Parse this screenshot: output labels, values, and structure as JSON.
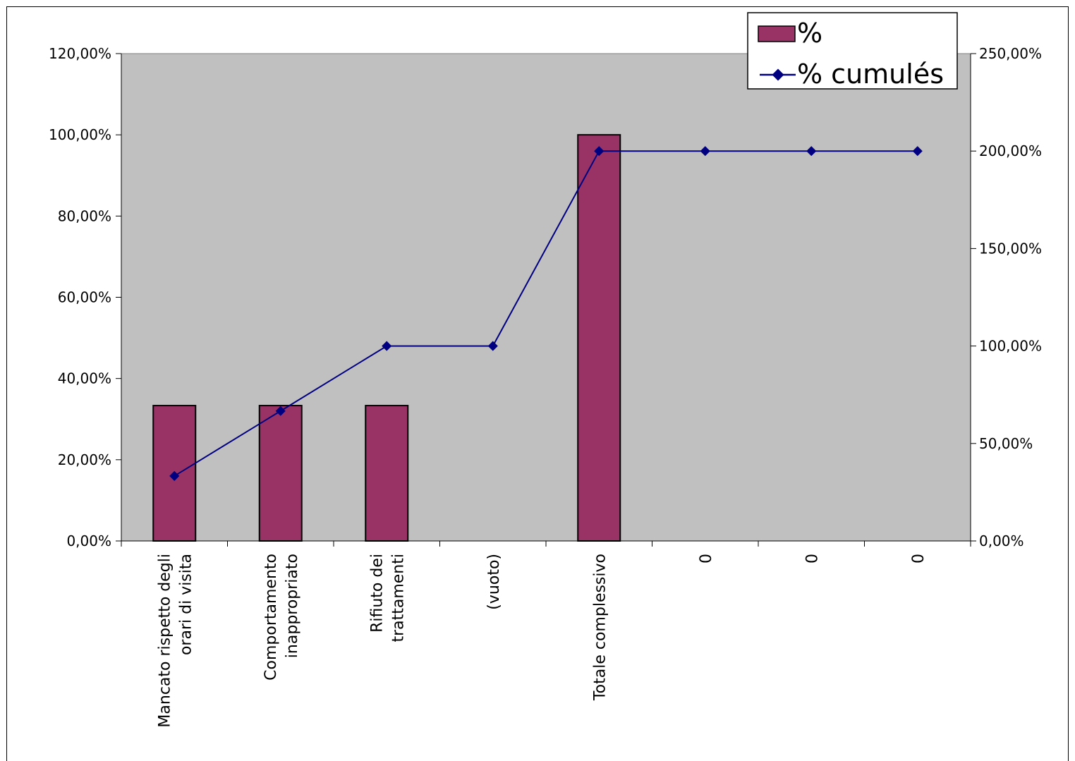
{
  "chart_data": {
    "type": "bar+line",
    "categories": [
      [
        "Mancato rispetto degli",
        "orari di visita"
      ],
      [
        "Comportamento",
        "inappropriato"
      ],
      [
        "Rifiuto dei",
        "trattamenti"
      ],
      [
        "(vuoto)"
      ],
      [
        "Totale complessivo"
      ],
      [
        "0"
      ],
      [
        "0"
      ],
      [
        "0"
      ]
    ],
    "series": [
      {
        "name": "%",
        "kind": "bar",
        "axis": "left",
        "values": [
          33.33,
          33.33,
          33.33,
          null,
          100,
          null,
          null,
          null
        ],
        "color": "#993366"
      },
      {
        "name": "% cumulés",
        "kind": "line",
        "axis": "right",
        "values": [
          33.33,
          66.67,
          100,
          100,
          200,
          200,
          200,
          200
        ],
        "color": "#000080"
      }
    ],
    "y_left": {
      "min": 0,
      "max": 120,
      "step": 20,
      "tick_labels": [
        "0,00%",
        "20,00%",
        "40,00%",
        "60,00%",
        "80,00%",
        "100,00%",
        "120,00%"
      ]
    },
    "y_right": {
      "min": 0,
      "max": 250,
      "step": 50,
      "tick_labels": [
        "0,00%",
        "50,00%",
        "100,00%",
        "150,00%",
        "200,00%",
        "250,00%"
      ]
    },
    "plot_background": "#c0c0c0",
    "grid": false,
    "legend_position": "top-right"
  }
}
